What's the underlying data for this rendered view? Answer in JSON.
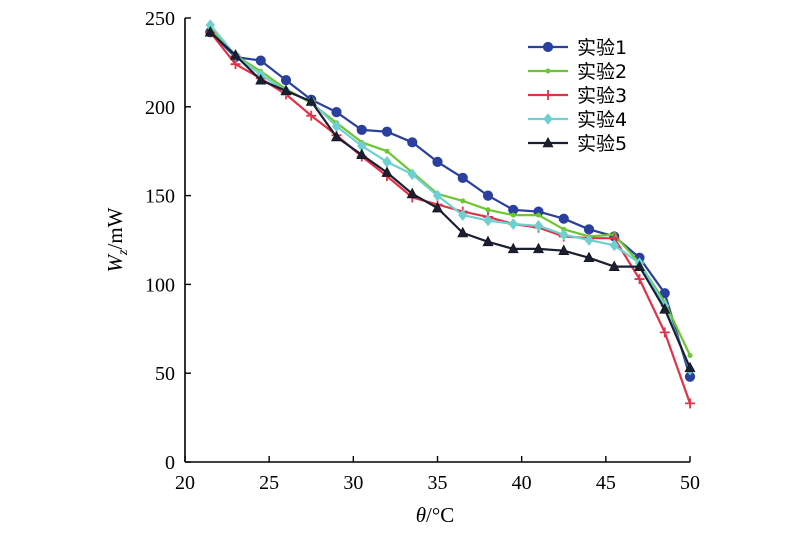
{
  "chart_data": {
    "type": "line",
    "xlabel_symbol": "θ",
    "xlabel_unit": "/°C",
    "ylabel_symbol": "W",
    "ylabel_sub": "z",
    "ylabel_unit": "/mW",
    "xlim": [
      20,
      50
    ],
    "ylim": [
      0,
      250
    ],
    "xticks": [
      20,
      25,
      30,
      35,
      40,
      45,
      50
    ],
    "yticks": [
      0,
      50,
      100,
      150,
      200,
      250
    ],
    "grid": false,
    "legend_position": "top-right",
    "series": [
      {
        "name": "实验1",
        "color": "#2a3f9e",
        "marker": "circle",
        "x": [
          21.5,
          23,
          24.5,
          26,
          27.5,
          29,
          30.5,
          32,
          33.5,
          35,
          36.5,
          38,
          39.5,
          41,
          42.5,
          44,
          45.5,
          47,
          48.5,
          50
        ],
        "y": [
          242,
          228,
          226,
          215,
          204,
          197,
          187,
          186,
          180,
          169,
          160,
          150,
          142,
          141,
          137,
          131,
          127,
          115,
          95,
          48
        ]
      },
      {
        "name": "实验2",
        "color": "#6cc62f",
        "marker": "small-dot",
        "x": [
          21.5,
          23,
          24.5,
          26,
          27.5,
          29,
          30.5,
          32,
          33.5,
          35,
          36.5,
          38,
          39.5,
          41,
          42.5,
          44,
          45.5,
          47,
          48.5,
          50
        ],
        "y": [
          244,
          229,
          220,
          210,
          202,
          191,
          180,
          175,
          163,
          151,
          147,
          142,
          139,
          139,
          131,
          127,
          128,
          112,
          90,
          60
        ]
      },
      {
        "name": "实验3",
        "color": "#e0334a",
        "marker": "plus",
        "x": [
          21.5,
          23,
          24.5,
          26,
          27.5,
          29,
          30.5,
          32,
          33.5,
          35,
          36.5,
          38,
          39.5,
          41,
          42.5,
          44,
          45.5,
          47,
          48.5,
          50
        ],
        "y": [
          242,
          224,
          216,
          207,
          195,
          184,
          172,
          161,
          149,
          145,
          141,
          138,
          134,
          132,
          127,
          126,
          126,
          103,
          73,
          33
        ]
      },
      {
        "name": "实验4",
        "color": "#6fd0d0",
        "marker": "diamond",
        "x": [
          21.5,
          23,
          24.5,
          26,
          27.5,
          29,
          30.5,
          32,
          33.5,
          35,
          36.5,
          38,
          39.5,
          41,
          42.5,
          44,
          45.5,
          47,
          48.5,
          50
        ],
        "y": [
          246,
          229,
          218,
          209,
          203,
          189,
          178,
          169,
          162,
          150,
          139,
          136,
          134,
          133,
          128,
          125,
          122,
          112,
          88,
          52
        ]
      },
      {
        "name": "实验5",
        "color": "#1a1f33",
        "marker": "triangle",
        "x": [
          21.5,
          23,
          24.5,
          26,
          27.5,
          29,
          30.5,
          32,
          33.5,
          35,
          36.5,
          38,
          39.5,
          41,
          42.5,
          44,
          45.5,
          47,
          48.5,
          50
        ],
        "y": [
          242,
          229,
          215,
          209,
          203,
          183,
          173,
          163,
          151,
          143,
          129,
          124,
          120,
          120,
          119,
          115,
          110,
          110,
          86,
          53
        ]
      }
    ]
  }
}
